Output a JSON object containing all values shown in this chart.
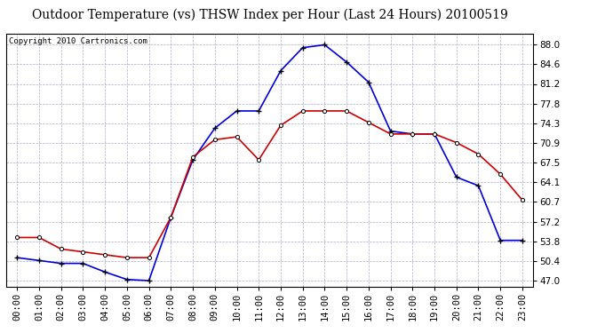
{
  "title": "Outdoor Temperature (vs) THSW Index per Hour (Last 24 Hours) 20100519",
  "copyright": "Copyright 2010 Cartronics.com",
  "hours": [
    "00:00",
    "01:00",
    "02:00",
    "03:00",
    "04:00",
    "05:00",
    "06:00",
    "07:00",
    "08:00",
    "09:00",
    "10:00",
    "11:00",
    "12:00",
    "13:00",
    "14:00",
    "15:00",
    "16:00",
    "17:00",
    "18:00",
    "19:00",
    "20:00",
    "21:00",
    "22:00",
    "23:00"
  ],
  "blue_thsw": [
    51.0,
    50.5,
    50.0,
    50.0,
    48.5,
    47.2,
    47.0,
    58.0,
    68.0,
    73.5,
    76.5,
    76.5,
    83.5,
    87.5,
    88.0,
    85.0,
    81.5,
    73.0,
    72.5,
    72.5,
    65.0,
    63.5,
    54.0,
    54.0
  ],
  "red_temp": [
    54.5,
    54.5,
    52.5,
    52.0,
    51.5,
    51.0,
    51.0,
    58.0,
    68.5,
    71.5,
    72.0,
    68.0,
    74.0,
    76.5,
    76.5,
    76.5,
    74.5,
    72.5,
    72.5,
    72.5,
    71.0,
    69.0,
    65.5,
    61.0
  ],
  "y_ticks": [
    47.0,
    50.4,
    53.8,
    57.2,
    60.7,
    64.1,
    67.5,
    70.9,
    74.3,
    77.8,
    81.2,
    84.6,
    88.0
  ],
  "ylim": [
    46.0,
    90.0
  ],
  "xlim": [
    -0.5,
    23.5
  ],
  "blue_color": "#0000dd",
  "red_color": "#cc0000",
  "bg_color": "#ffffff",
  "grid_color": "#aaaacc",
  "title_fontsize": 10,
  "copyright_fontsize": 6.5,
  "tick_fontsize": 7.5
}
